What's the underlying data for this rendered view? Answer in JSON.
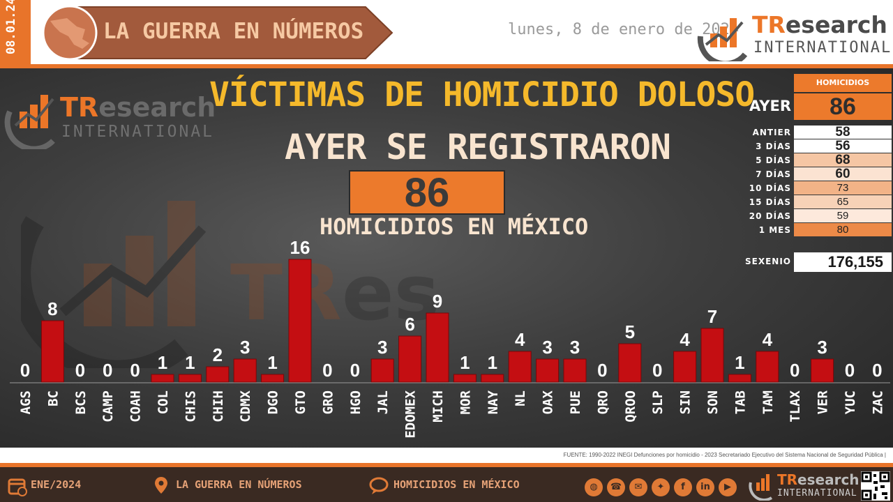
{
  "header": {
    "date_vertical": "08.01.24",
    "banner_title": "LA GUERRA EN NÚMEROS",
    "date_text": "lunes, 8 de enero de 2024",
    "logo_tr": "TR",
    "logo_rest": "esearch",
    "logo_intl": "INTERNATIONAL"
  },
  "main": {
    "title": "VÍCTIMAS DE HOMICIDIO DOLOSO",
    "subtitle": "AYER SE REGISTRARON",
    "big_number": "86",
    "big_caption": "HOMICIDIOS EN MÉXICO"
  },
  "summary": {
    "header": "HOMICIDIOS",
    "ayer_label": "AYER",
    "ayer_value": "86",
    "rows": [
      {
        "label": "ANTIER",
        "value": "58",
        "color": "#ffffff",
        "bold": true
      },
      {
        "label": "3 DÍAS",
        "value": "56",
        "color": "#ffffff",
        "bold": true
      },
      {
        "label": "5 DÍAS",
        "value": "68",
        "color": "#f5c6a4",
        "bold": true
      },
      {
        "label": "7 DÍAS",
        "value": "60",
        "color": "#fbe3d2",
        "bold": true
      },
      {
        "label": "10 DÍAS",
        "value": "73",
        "color": "#f2b387",
        "bold": false
      },
      {
        "label": "15 DÍAS",
        "value": "65",
        "color": "#f7d2b7",
        "bold": false
      },
      {
        "label": "20 DÍAS",
        "value": "59",
        "color": "#fde9dc",
        "bold": false
      },
      {
        "label": "1 MES",
        "value": "80",
        "color": "#ec8a48",
        "bold": false
      }
    ],
    "sexenio_label": "SEXENIO",
    "sexenio_value": "176,155"
  },
  "chart_data": {
    "type": "bar",
    "categories": [
      "AGS",
      "BC",
      "BCS",
      "CAMP",
      "COAH",
      "COL",
      "CHIS",
      "CHIH",
      "CDMX",
      "DGO",
      "GTO",
      "GRO",
      "HGO",
      "JAL",
      "EDOMEX",
      "MICH",
      "MOR",
      "NAY",
      "NL",
      "OAX",
      "PUE",
      "QRO",
      "QROO",
      "SLP",
      "SIN",
      "SON",
      "TAB",
      "TAM",
      "TLAX",
      "VER",
      "YUC",
      "ZAC"
    ],
    "values": [
      0,
      8,
      0,
      0,
      0,
      1,
      1,
      2,
      3,
      1,
      16,
      0,
      0,
      3,
      6,
      9,
      1,
      1,
      4,
      3,
      3,
      0,
      5,
      0,
      4,
      7,
      1,
      4,
      0,
      3,
      0,
      0
    ],
    "ylim": [
      0,
      16
    ],
    "grid": false,
    "bar_color": "#c40e12"
  },
  "source": "FUENTE: 1990-2022 INEGI Defunciones por homicidio - 2023 Secretariado Ejecutivo del Sistema Nacional de Seguridad Pública |",
  "footer": {
    "period": "ENE/2024",
    "section": "LA GUERRA EN NÚMEROS",
    "topic": "HOMICIDIOS EN MÉXICO",
    "social_icons": [
      "globe-icon",
      "phone-icon",
      "mail-icon",
      "twitter-icon",
      "facebook-icon",
      "linkedin-icon",
      "youtube-icon"
    ]
  }
}
